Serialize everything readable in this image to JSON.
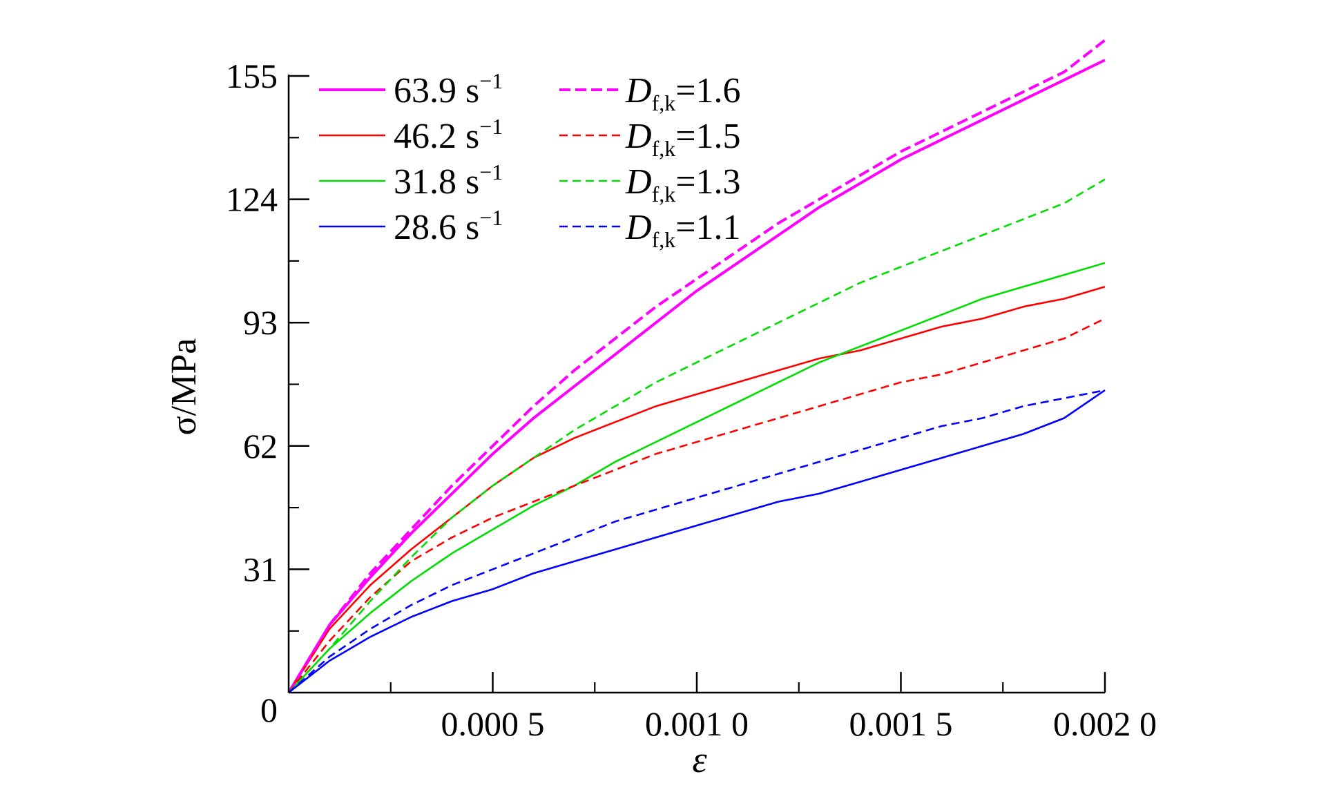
{
  "chart_data": {
    "type": "line",
    "title": "",
    "xlabel": "ε",
    "ylabel": "σ/MPa",
    "xlim": [
      0,
      0.002
    ],
    "ylim": [
      0,
      155
    ],
    "x_ticks": [
      {
        "value": 0.0005,
        "label": "0.000 5"
      },
      {
        "value": 0.001,
        "label": "0.001 0"
      },
      {
        "value": 0.0015,
        "label": "0.001 5"
      },
      {
        "value": 0.002,
        "label": "0.002 0"
      }
    ],
    "x_minor_ticks": [
      0.00025,
      0.00075,
      0.00125,
      0.00175
    ],
    "y_ticks": [
      {
        "value": 0,
        "label": "0"
      },
      {
        "value": 31,
        "label": "31"
      },
      {
        "value": 62,
        "label": "62"
      },
      {
        "value": 93,
        "label": "93"
      },
      {
        "value": 124,
        "label": "124"
      },
      {
        "value": 155,
        "label": "155"
      }
    ],
    "y_minor_ticks": [
      15.5,
      46.5,
      77.5,
      108.5,
      139.5
    ],
    "grid": false,
    "legend_position": "top-left",
    "series": [
      {
        "name": "63.9 s⁻¹",
        "legend_main": "63.9 s",
        "legend_sup": "−1",
        "legend_sub": "",
        "legend_tail": "",
        "color": "#ff00ff",
        "style": "solid",
        "width": "thick",
        "x": [
          0,
          0.0001,
          0.0002,
          0.0003,
          0.0004,
          0.0005,
          0.0006,
          0.0007,
          0.0008,
          0.0009,
          0.001,
          0.0011,
          0.0012,
          0.0013,
          0.0014,
          0.0015,
          0.0016,
          0.0017,
          0.0018,
          0.0019,
          0.002
        ],
        "y": [
          0,
          17,
          29,
          40,
          50,
          60,
          69,
          77,
          85,
          93,
          101,
          108,
          115,
          122,
          128,
          134,
          139,
          144,
          149,
          154,
          159
        ]
      },
      {
        "name": "46.2 s⁻¹",
        "legend_main": "46.2 s",
        "legend_sup": "−1",
        "legend_sub": "",
        "legend_tail": "",
        "color": "#ff0000",
        "style": "solid",
        "width": "normal",
        "x": [
          0,
          0.0001,
          0.0002,
          0.0003,
          0.0004,
          0.0005,
          0.0006,
          0.0007,
          0.0008,
          0.0009,
          0.001,
          0.0011,
          0.0012,
          0.0013,
          0.0014,
          0.0015,
          0.0016,
          0.0017,
          0.0018,
          0.0019,
          0.002
        ],
        "y": [
          0,
          16,
          27,
          36,
          44,
          52,
          59,
          64,
          68,
          72,
          75,
          78,
          81,
          84,
          86,
          89,
          92,
          94,
          97,
          99,
          102
        ]
      },
      {
        "name": "31.8 s⁻¹",
        "legend_main": "31.8 s",
        "legend_sup": "−1",
        "legend_sub": "",
        "legend_tail": "",
        "color": "#00dd00",
        "style": "solid",
        "width": "normal",
        "x": [
          0,
          0.0001,
          0.0002,
          0.0003,
          0.0004,
          0.0005,
          0.0006,
          0.0007,
          0.0008,
          0.0009,
          0.001,
          0.0011,
          0.0012,
          0.0013,
          0.0014,
          0.0015,
          0.0016,
          0.0017,
          0.0018,
          0.0019,
          0.002
        ],
        "y": [
          0,
          11,
          20,
          28,
          35,
          41,
          47,
          52,
          58,
          63,
          68,
          73,
          78,
          83,
          87,
          91,
          95,
          99,
          102,
          105,
          108
        ]
      },
      {
        "name": "28.6 s⁻¹",
        "legend_main": "28.6 s",
        "legend_sup": "−1",
        "legend_sub": "",
        "legend_tail": "",
        "color": "#0000ff",
        "style": "solid",
        "width": "normal",
        "x": [
          0,
          0.0001,
          0.0002,
          0.0003,
          0.0004,
          0.0005,
          0.0006,
          0.0007,
          0.0008,
          0.0009,
          0.001,
          0.0011,
          0.0012,
          0.0013,
          0.0014,
          0.0015,
          0.0016,
          0.0017,
          0.0018,
          0.0019,
          0.002
        ],
        "y": [
          0,
          8,
          14,
          19,
          23,
          26,
          30,
          33,
          36,
          39,
          42,
          45,
          48,
          50,
          53,
          56,
          59,
          62,
          65,
          69,
          76
        ]
      },
      {
        "name": "Df,k=1.6",
        "legend_main": "D",
        "legend_sup": "",
        "legend_sub": "f,k",
        "legend_tail": "=1.6",
        "color": "#ff00ff",
        "style": "dashed",
        "width": "thick",
        "x": [
          0,
          0.0001,
          0.0002,
          0.0003,
          0.0004,
          0.0005,
          0.0006,
          0.0007,
          0.0008,
          0.0009,
          0.001,
          0.0011,
          0.0012,
          0.0013,
          0.0014,
          0.0015,
          0.0016,
          0.0017,
          0.0018,
          0.0019,
          0.002
        ],
        "y": [
          0,
          17,
          30,
          41,
          52,
          62,
          72,
          81,
          89,
          97,
          104,
          111,
          118,
          124,
          130,
          136,
          141,
          146,
          151,
          156,
          164
        ]
      },
      {
        "name": "Df,k=1.5",
        "legend_main": "D",
        "legend_sup": "",
        "legend_sub": "f,k",
        "legend_tail": "=1.5",
        "color": "#ff0000",
        "style": "dashed",
        "width": "normal",
        "x": [
          0,
          0.0001,
          0.0002,
          0.0003,
          0.0004,
          0.0005,
          0.0006,
          0.0007,
          0.0008,
          0.0009,
          0.001,
          0.0011,
          0.0012,
          0.0013,
          0.0014,
          0.0015,
          0.0016,
          0.0017,
          0.0018,
          0.0019,
          0.002
        ],
        "y": [
          0,
          13,
          24,
          33,
          39,
          44,
          48,
          52,
          56,
          60,
          63,
          66,
          69,
          72,
          75,
          78,
          80,
          83,
          86,
          89,
          94
        ]
      },
      {
        "name": "Df,k=1.3",
        "legend_main": "D",
        "legend_sup": "",
        "legend_sub": "f,k",
        "legend_tail": "=1.3",
        "color": "#00dd00",
        "style": "dashed",
        "width": "normal",
        "x": [
          0,
          0.0001,
          0.0002,
          0.0003,
          0.0004,
          0.0005,
          0.0006,
          0.0007,
          0.0008,
          0.0009,
          0.001,
          0.0011,
          0.0012,
          0.0013,
          0.0014,
          0.0015,
          0.0016,
          0.0017,
          0.0018,
          0.0019,
          0.002
        ],
        "y": [
          0,
          11,
          23,
          34,
          44,
          52,
          59,
          66,
          72,
          78,
          83,
          88,
          93,
          98,
          103,
          107,
          111,
          115,
          119,
          123,
          129
        ]
      },
      {
        "name": "Df,k=1.1",
        "legend_main": "D",
        "legend_sup": "",
        "legend_sub": "f,k",
        "legend_tail": "=1.1",
        "color": "#0000ff",
        "style": "dashed",
        "width": "normal",
        "x": [
          0,
          0.0001,
          0.0002,
          0.0003,
          0.0004,
          0.0005,
          0.0006,
          0.0007,
          0.0008,
          0.0009,
          0.001,
          0.0011,
          0.0012,
          0.0013,
          0.0014,
          0.0015,
          0.0016,
          0.0017,
          0.0018,
          0.0019,
          0.002
        ],
        "y": [
          0,
          9,
          16,
          22,
          27,
          31,
          35,
          39,
          43,
          46,
          49,
          52,
          55,
          58,
          61,
          64,
          67,
          69,
          72,
          74,
          76
        ]
      }
    ]
  }
}
